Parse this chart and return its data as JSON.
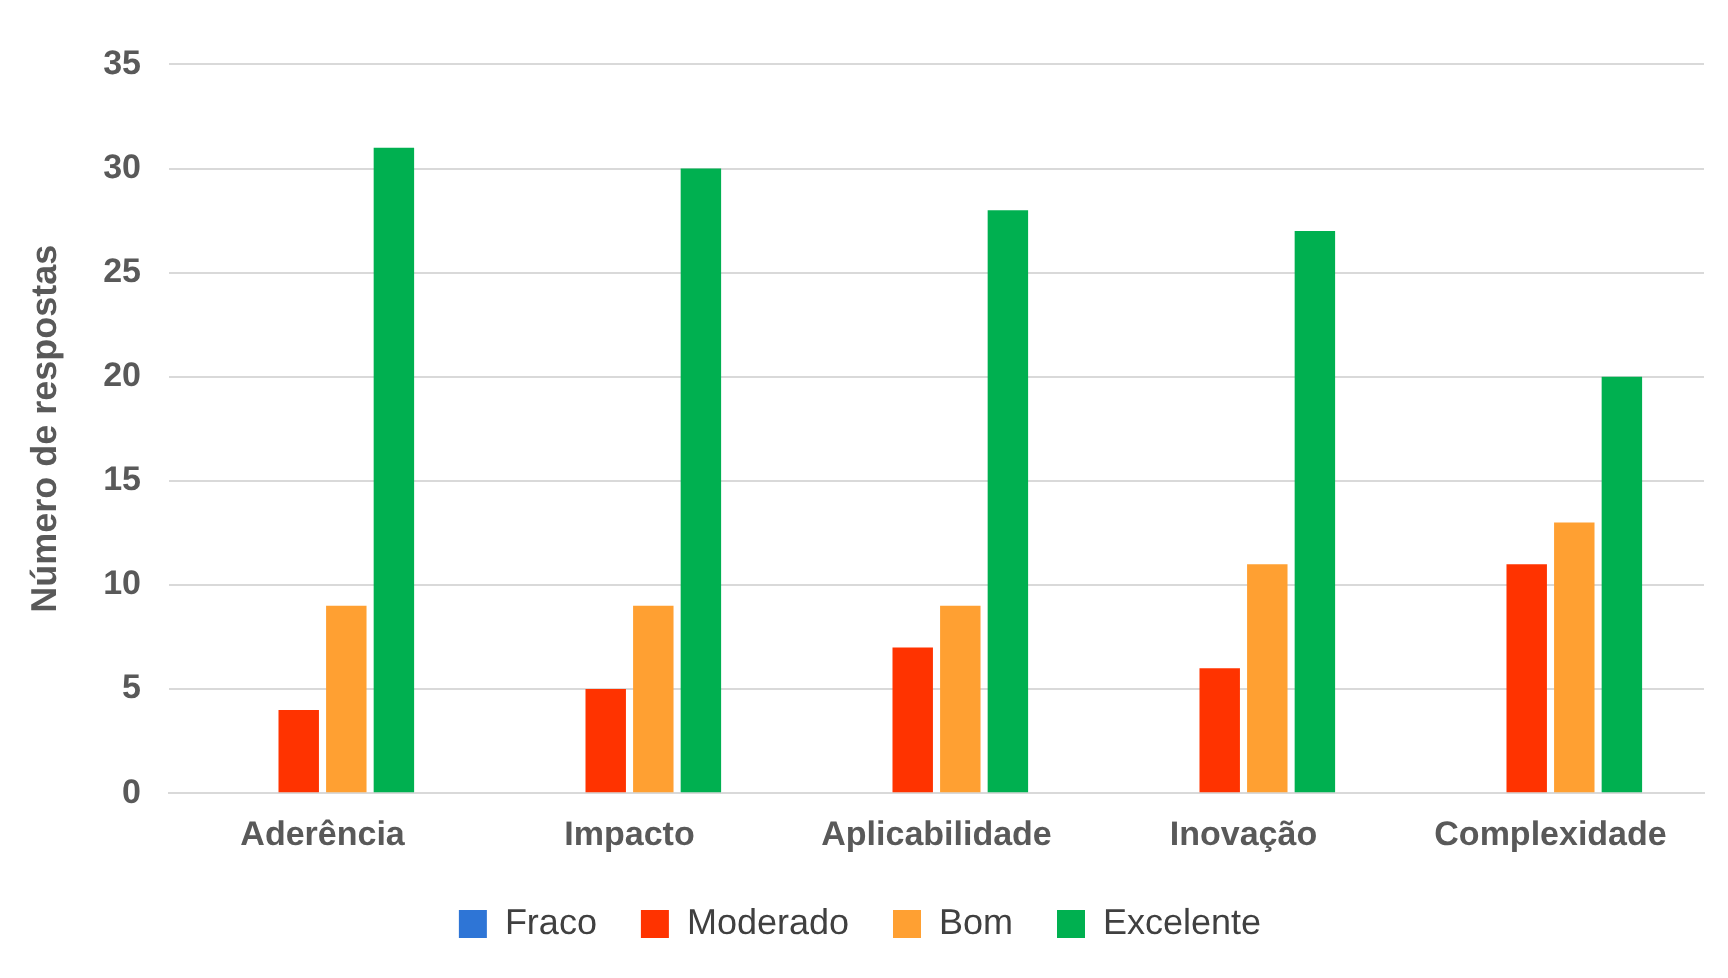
{
  "chart_data": {
    "type": "bar",
    "ylabel": "Número de respostas",
    "categories": [
      "Aderência",
      "Impacto",
      "Aplicabilidade",
      "Inovação",
      "Complexidade"
    ],
    "series": [
      {
        "name": "Fraco",
        "color": "#2e75d6",
        "values": [
          0,
          0,
          0,
          0,
          0
        ]
      },
      {
        "name": "Moderado",
        "color": "#ff3300",
        "values": [
          4,
          5,
          7,
          6,
          11
        ]
      },
      {
        "name": "Bom",
        "color": "#ffa032",
        "values": [
          9,
          9,
          9,
          11,
          13
        ]
      },
      {
        "name": "Excelente",
        "color": "#00b050",
        "values": [
          31,
          30,
          28,
          27,
          20
        ]
      }
    ],
    "ylim": [
      0,
      35
    ],
    "yticks": [
      0,
      5,
      10,
      15,
      20,
      25,
      30,
      35
    ],
    "grid": "y",
    "legend": "bottom"
  }
}
